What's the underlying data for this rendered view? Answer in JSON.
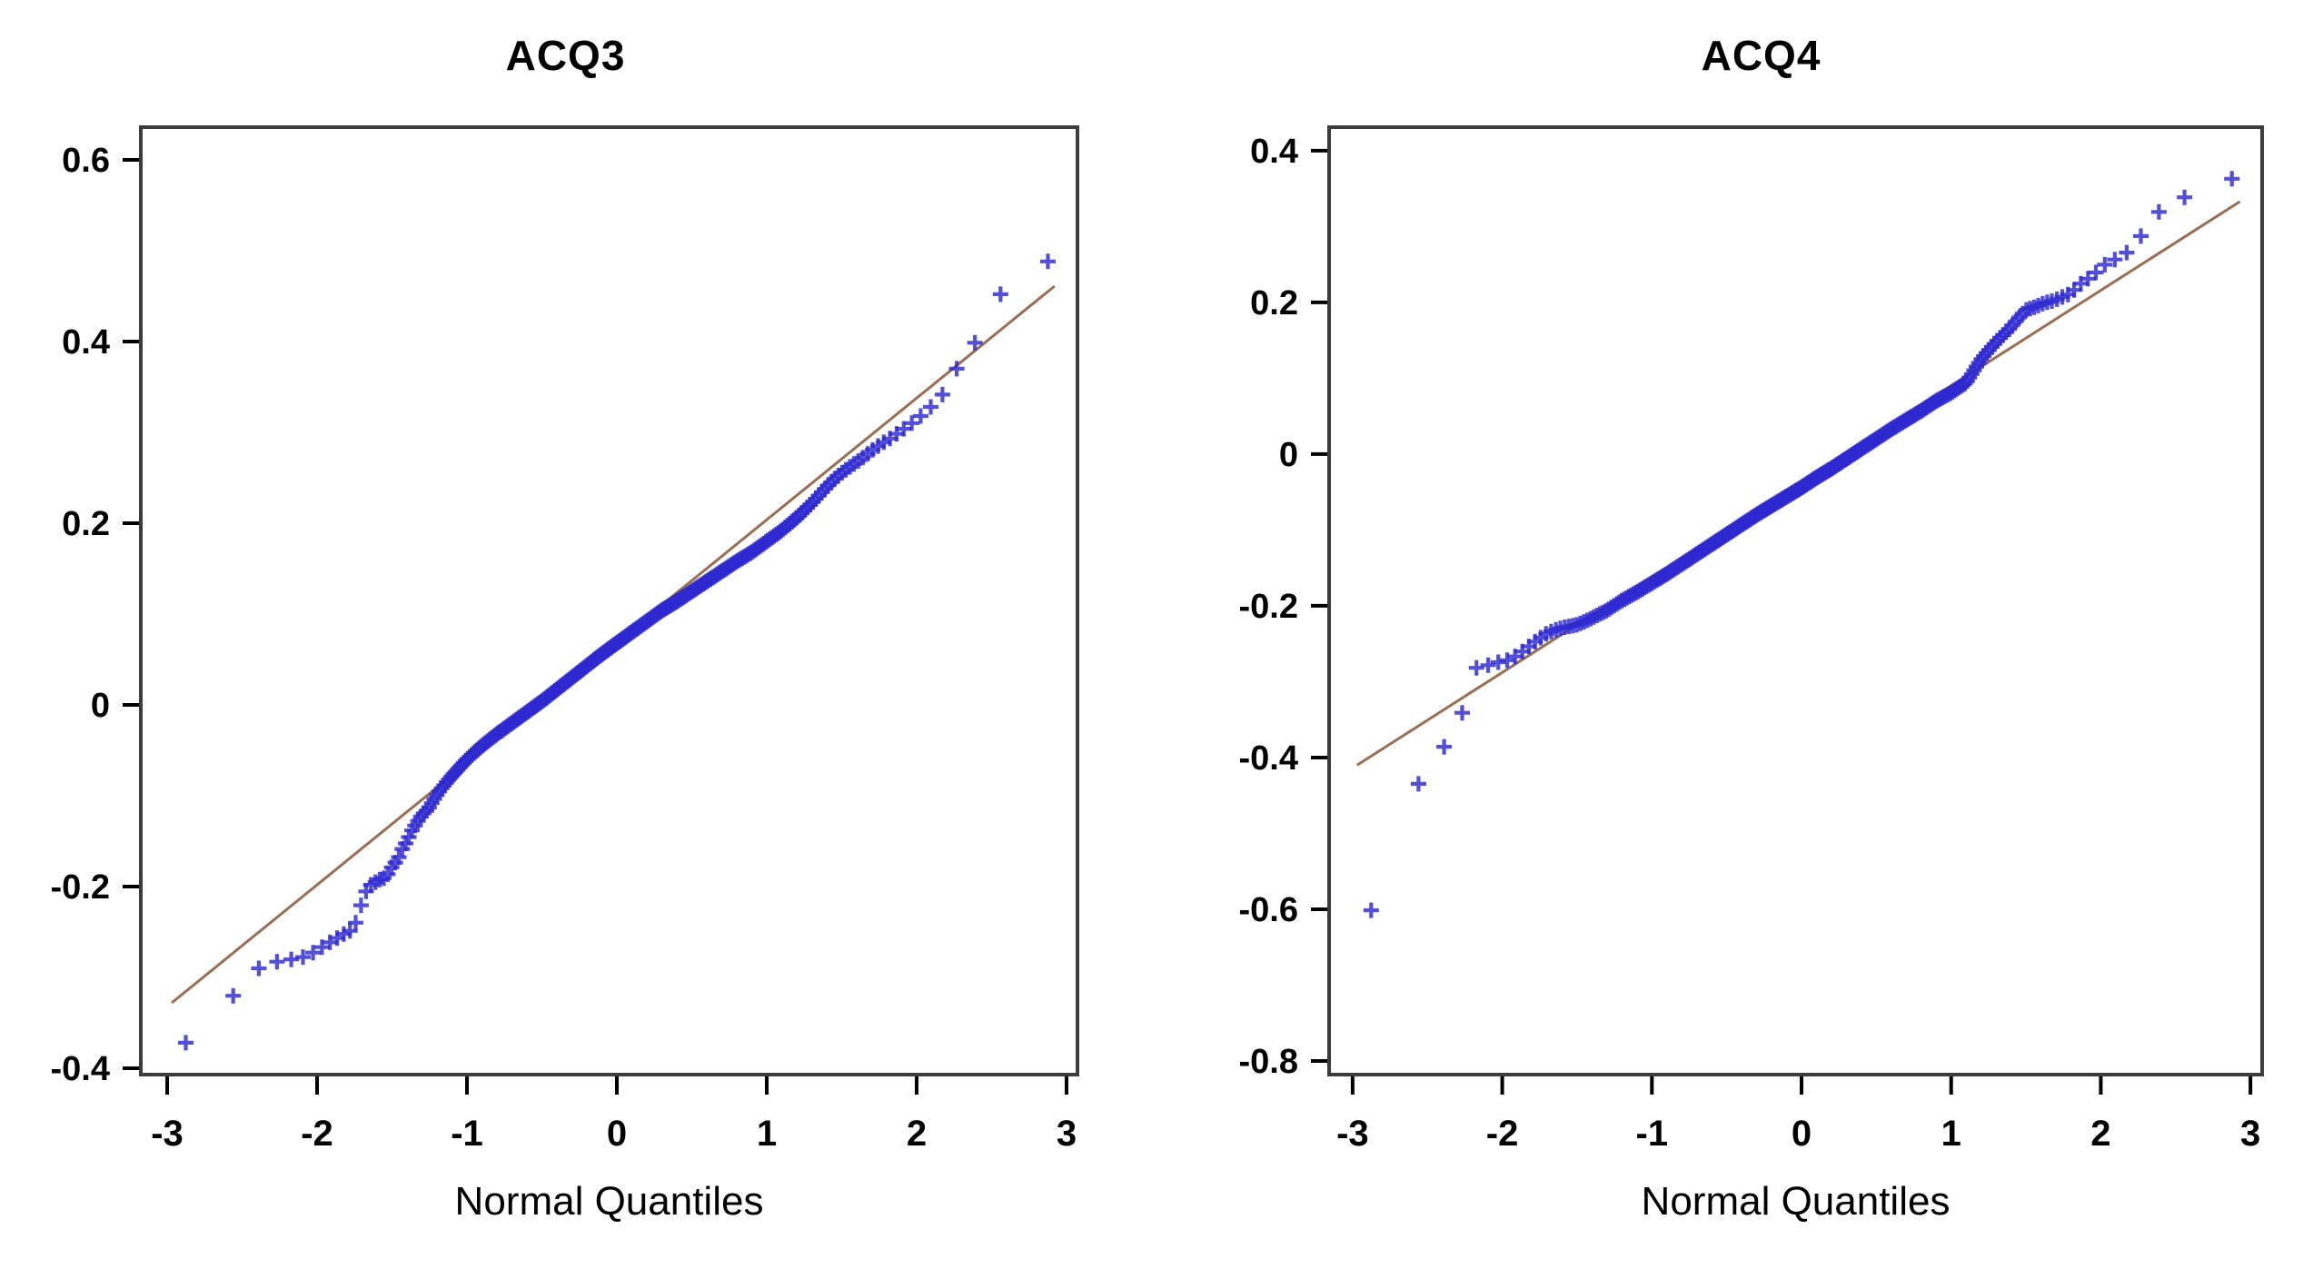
{
  "figure": {
    "background": "#ffffff",
    "description": "Two side-by-side normal quantile-quantile plots"
  },
  "style": {
    "marker_color": "#2d28d0",
    "marker_opacity": 0.82,
    "ref_line_color": "#9a6e52",
    "frame_color": "#3c3c3c",
    "tick_color": "#000000",
    "text_color": "#000000"
  },
  "chart_data": [
    {
      "type": "scatter",
      "title": "ACQ3",
      "xlabel": "Normal Quantiles",
      "ylabel": "",
      "legend": "none",
      "grid": "off",
      "marker": "plus",
      "n_points": 310,
      "xlim": [
        -3.176,
        3.073
      ],
      "ylim": [
        -0.407,
        0.636
      ],
      "x_ticks": [
        -3,
        -2,
        -1,
        0,
        1,
        2,
        3
      ],
      "x_tick_labels": [
        "-3",
        "-2",
        "-1",
        "0",
        "1",
        "2",
        "3"
      ],
      "y_ticks": [
        0.6,
        0.4,
        0.2,
        0,
        -0.2,
        -0.4
      ],
      "y_tick_labels": [
        "0.6",
        "0.4",
        "0.2",
        "0",
        "-0.2",
        "-0.4"
      ],
      "ref_line": {
        "x1": -2.97,
        "y1": -0.328,
        "x2": 2.92,
        "y2": 0.461
      },
      "curve": [
        [
          -3.0,
          -0.375
        ],
        [
          -2.88,
          -0.372
        ],
        [
          -2.68,
          -0.365
        ],
        [
          -2.5,
          -0.298
        ],
        [
          -2.4,
          -0.291
        ],
        [
          -2.33,
          -0.285
        ],
        [
          -2.25,
          -0.282
        ],
        [
          -2.17,
          -0.28
        ],
        [
          -2.1,
          -0.278
        ],
        [
          -2.04,
          -0.274
        ],
        [
          -1.98,
          -0.268
        ],
        [
          -1.92,
          -0.262
        ],
        [
          -1.86,
          -0.256
        ],
        [
          -1.81,
          -0.251
        ],
        [
          -1.77,
          -0.248
        ],
        [
          -1.73,
          -0.236
        ],
        [
          -1.7,
          -0.216
        ],
        [
          -1.66,
          -0.2
        ],
        [
          -1.62,
          -0.196
        ],
        [
          -1.58,
          -0.192
        ],
        [
          -1.54,
          -0.19
        ],
        [
          -1.5,
          -0.178
        ],
        [
          -1.46,
          -0.17
        ],
        [
          -1.43,
          -0.158
        ],
        [
          -1.4,
          -0.15
        ],
        [
          -1.37,
          -0.139
        ],
        [
          -1.34,
          -0.131
        ],
        [
          -1.3,
          -0.121
        ],
        [
          -1.26,
          -0.115
        ],
        [
          -1.22,
          -0.104
        ],
        [
          -1.18,
          -0.094
        ],
        [
          -1.1,
          -0.078
        ],
        [
          -1.0,
          -0.06
        ],
        [
          -0.9,
          -0.045
        ],
        [
          -0.8,
          -0.032
        ],
        [
          -0.7,
          -0.02
        ],
        [
          -0.6,
          -0.008
        ],
        [
          -0.5,
          0.004
        ],
        [
          -0.4,
          0.017
        ],
        [
          -0.3,
          0.03
        ],
        [
          -0.2,
          0.043
        ],
        [
          -0.1,
          0.056
        ],
        [
          0.0,
          0.068
        ],
        [
          0.1,
          0.08
        ],
        [
          0.2,
          0.092
        ],
        [
          0.3,
          0.104
        ],
        [
          0.4,
          0.114
        ],
        [
          0.5,
          0.125
        ],
        [
          0.6,
          0.136
        ],
        [
          0.7,
          0.147
        ],
        [
          0.8,
          0.158
        ],
        [
          0.9,
          0.168
        ],
        [
          1.0,
          0.18
        ],
        [
          1.1,
          0.192
        ],
        [
          1.2,
          0.206
        ],
        [
          1.3,
          0.222
        ],
        [
          1.4,
          0.24
        ],
        [
          1.46,
          0.25
        ],
        [
          1.52,
          0.258
        ],
        [
          1.58,
          0.265
        ],
        [
          1.64,
          0.272
        ],
        [
          1.7,
          0.28
        ],
        [
          1.76,
          0.287
        ],
        [
          1.82,
          0.293
        ],
        [
          1.88,
          0.3
        ],
        [
          1.95,
          0.308
        ],
        [
          2.02,
          0.317
        ],
        [
          2.08,
          0.326
        ],
        [
          2.15,
          0.336
        ],
        [
          2.23,
          0.356
        ],
        [
          2.32,
          0.39
        ],
        [
          2.43,
          0.404
        ],
        [
          2.6,
          0.467
        ],
        [
          2.9,
          0.49
        ]
      ]
    },
    {
      "type": "scatter",
      "title": "ACQ4",
      "xlabel": "Normal Quantiles",
      "ylabel": "",
      "legend": "none",
      "grid": "off",
      "marker": "plus",
      "n_points": 310,
      "xlim": [
        -3.157,
        3.078
      ],
      "ylim": [
        -0.818,
        0.431
      ],
      "x_ticks": [
        -3,
        -2,
        -1,
        0,
        1,
        2,
        3
      ],
      "x_tick_labels": [
        "-3",
        "-2",
        "-1",
        "0",
        "1",
        "2",
        "3"
      ],
      "y_ticks": [
        0.4,
        0.2,
        0,
        -0.2,
        -0.4,
        -0.6,
        -0.8
      ],
      "y_tick_labels": [
        "0.4",
        "0.2",
        "0",
        "-0.2",
        "-0.4",
        "-0.6",
        "-0.8"
      ],
      "ref_line": {
        "x1": -2.97,
        "y1": -0.41,
        "x2": 2.93,
        "y2": 0.333
      },
      "curve": [
        [
          -3.0,
          -0.61
        ],
        [
          -2.88,
          -0.604
        ],
        [
          -2.67,
          -0.47
        ],
        [
          -2.52,
          -0.422
        ],
        [
          -2.4,
          -0.393
        ],
        [
          -2.33,
          -0.35
        ],
        [
          -2.26,
          -0.34
        ],
        [
          -2.18,
          -0.282
        ],
        [
          -2.12,
          -0.28
        ],
        [
          -2.06,
          -0.276
        ],
        [
          -2.0,
          -0.273
        ],
        [
          -1.95,
          -0.271
        ],
        [
          -1.9,
          -0.265
        ],
        [
          -1.85,
          -0.258
        ],
        [
          -1.8,
          -0.25
        ],
        [
          -1.75,
          -0.243
        ],
        [
          -1.7,
          -0.236
        ],
        [
          -1.65,
          -0.232
        ],
        [
          -1.6,
          -0.229
        ],
        [
          -1.55,
          -0.227
        ],
        [
          -1.5,
          -0.225
        ],
        [
          -1.44,
          -0.22
        ],
        [
          -1.38,
          -0.214
        ],
        [
          -1.3,
          -0.206
        ],
        [
          -1.2,
          -0.193
        ],
        [
          -1.1,
          -0.182
        ],
        [
          -1.0,
          -0.17
        ],
        [
          -0.9,
          -0.158
        ],
        [
          -0.8,
          -0.145
        ],
        [
          -0.7,
          -0.132
        ],
        [
          -0.6,
          -0.119
        ],
        [
          -0.5,
          -0.106
        ],
        [
          -0.4,
          -0.093
        ],
        [
          -0.3,
          -0.08
        ],
        [
          -0.2,
          -0.068
        ],
        [
          -0.1,
          -0.056
        ],
        [
          0.0,
          -0.044
        ],
        [
          0.1,
          -0.031
        ],
        [
          0.2,
          -0.019
        ],
        [
          0.3,
          -0.006
        ],
        [
          0.4,
          0.007
        ],
        [
          0.5,
          0.02
        ],
        [
          0.6,
          0.033
        ],
        [
          0.7,
          0.045
        ],
        [
          0.8,
          0.057
        ],
        [
          0.9,
          0.07
        ],
        [
          1.0,
          0.081
        ],
        [
          1.1,
          0.094
        ],
        [
          1.2,
          0.125
        ],
        [
          1.26,
          0.139
        ],
        [
          1.32,
          0.152
        ],
        [
          1.38,
          0.163
        ],
        [
          1.44,
          0.177
        ],
        [
          1.5,
          0.19
        ],
        [
          1.56,
          0.194
        ],
        [
          1.62,
          0.199
        ],
        [
          1.68,
          0.202
        ],
        [
          1.74,
          0.207
        ],
        [
          1.8,
          0.212
        ],
        [
          1.86,
          0.224
        ],
        [
          1.92,
          0.232
        ],
        [
          1.99,
          0.243
        ],
        [
          2.05,
          0.254
        ],
        [
          2.12,
          0.258
        ],
        [
          2.16,
          0.262
        ],
        [
          2.23,
          0.282
        ],
        [
          2.32,
          0.295
        ],
        [
          2.43,
          0.334
        ],
        [
          2.6,
          0.34
        ],
        [
          2.9,
          0.365
        ]
      ]
    }
  ]
}
